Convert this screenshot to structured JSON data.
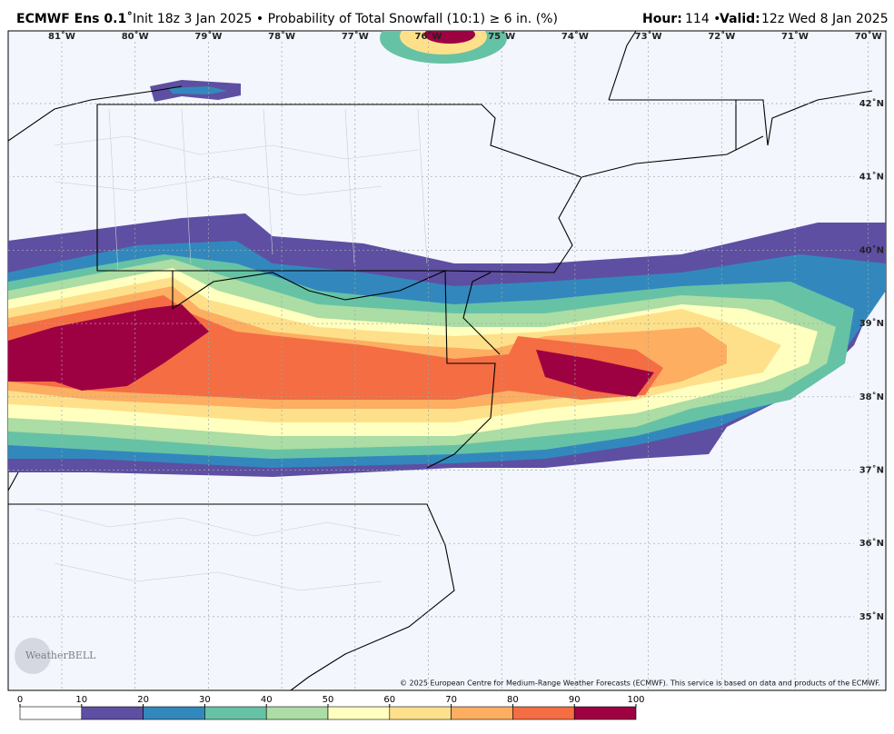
{
  "header": {
    "model": "ECMWF Ens 0.1˚",
    "description": "Init 18z 3 Jan 2025 • Probability of Total Snowfall (10:1)  ≥  6 in. (%)",
    "hour_label": "Hour:",
    "hour_value": "114 •",
    "valid_label": "Valid:",
    "valid_value": "12z Wed 8 Jan 2025"
  },
  "map": {
    "longitude_labels": [
      "81˚W",
      "80˚W",
      "79˚W",
      "78˚W",
      "77˚W",
      "76˚W",
      "75˚W",
      "74˚W",
      "73˚W",
      "72˚W",
      "71˚W",
      "70˚W"
    ],
    "latitude_labels": [
      "42˚N",
      "41˚N",
      "40˚N",
      "39˚N",
      "38˚N",
      "37˚N",
      "36˚N",
      "35˚N"
    ],
    "logo": "WeatherBELL",
    "credit": "© 2025 European Centre for Medium-Range Weather Forecasts (ECMWF). This service is based on data and products of the ECMWF."
  },
  "colorbar": {
    "ticks": [
      0,
      10,
      20,
      30,
      40,
      50,
      60,
      70,
      80,
      90,
      100
    ],
    "colors": [
      "#ffffff",
      "#5e4fa2",
      "#3288bd",
      "#66c2a5",
      "#abdda4",
      "#ffffbf",
      "#fee08b",
      "#fdae61",
      "#f46d43",
      "#9e0142"
    ]
  }
}
